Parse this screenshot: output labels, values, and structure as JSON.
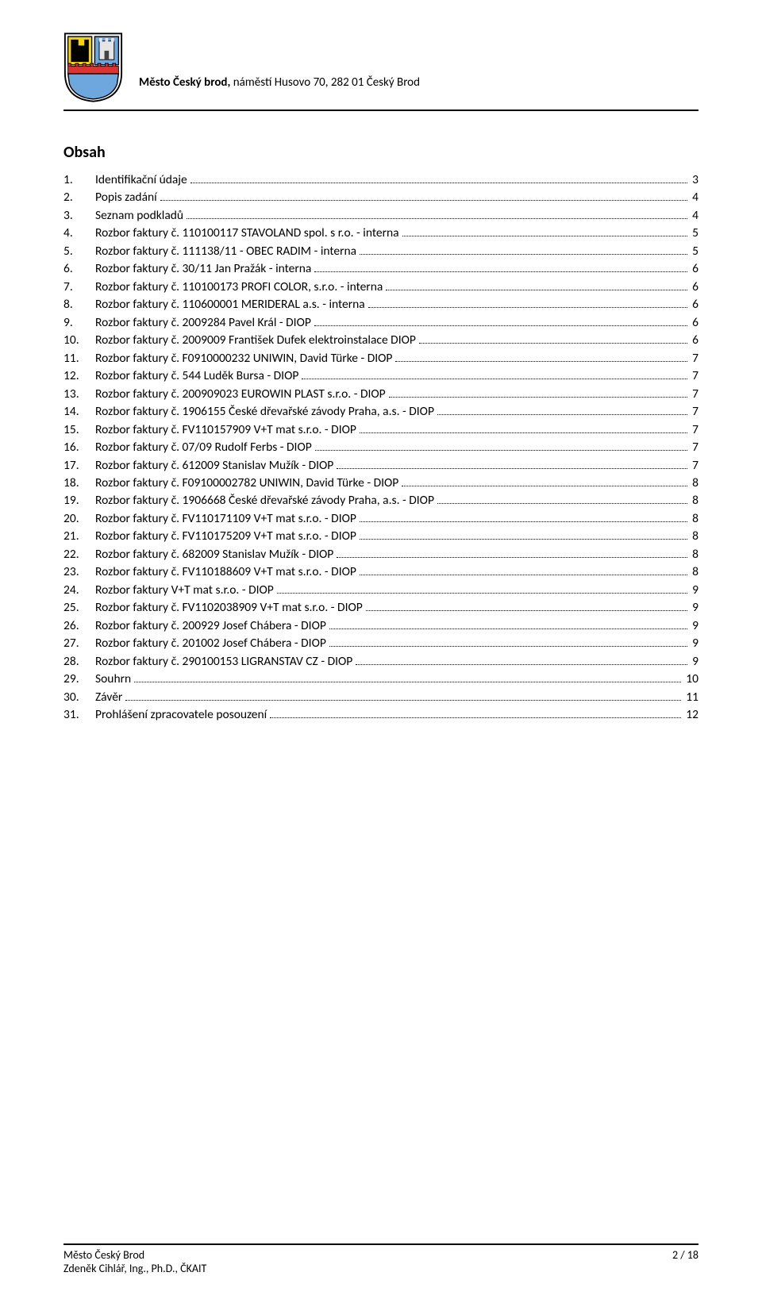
{
  "header": {
    "bold": "Město Český brod,",
    "rest": " náměstí Husovo 70, 282 01 Český Brod"
  },
  "title": "Obsah",
  "toc": [
    {
      "n": "1.",
      "label": "Identifikační údaje",
      "p": "3"
    },
    {
      "n": "2.",
      "label": "Popis zadání",
      "p": "4"
    },
    {
      "n": "3.",
      "label": "Seznam podkladů",
      "p": "4"
    },
    {
      "n": "4.",
      "label": "Rozbor faktury č. 110100117 STAVOLAND spol. s r.o. - interna",
      "p": "5"
    },
    {
      "n": "5.",
      "label": "Rozbor faktury č. 111138/11 -  OBEC RADIM - interna",
      "p": "5"
    },
    {
      "n": "6.",
      "label": "Rozbor faktury č. 30/11 Jan Pražák - interna",
      "p": "6"
    },
    {
      "n": "7.",
      "label": "Rozbor faktury č. 110100173 PROFI COLOR, s.r.o. - interna",
      "p": "6"
    },
    {
      "n": "8.",
      "label": "Rozbor faktury č. 110600001 MERIDERAL a.s. - interna",
      "p": "6"
    },
    {
      "n": "9.",
      "label": "Rozbor faktury č. 2009284 Pavel Král - DIOP",
      "p": "6"
    },
    {
      "n": "10.",
      "label": "Rozbor faktury č. 2009009 František Dufek elektroinstalace  DIOP",
      "p": "6"
    },
    {
      "n": "11.",
      "label": "Rozbor faktury č. F0910000232 UNIWIN, David Türke - DIOP",
      "p": "7"
    },
    {
      "n": "12.",
      "label": "Rozbor faktury č. 544 Luděk Bursa - DIOP",
      "p": "7"
    },
    {
      "n": "13.",
      "label": "Rozbor faktury č. 200909023 EUROWIN PLAST s.r.o. - DIOP",
      "p": "7"
    },
    {
      "n": "14.",
      "label": "Rozbor faktury č. 1906155 České dřevařské závody Praha, a.s. - DIOP",
      "p": "7"
    },
    {
      "n": "15.",
      "label": "Rozbor faktury č. FV110157909 V+T mat s.r.o. - DIOP",
      "p": "7"
    },
    {
      "n": "16.",
      "label": "Rozbor faktury č. 07/09 Rudolf Ferbs - DIOP",
      "p": "7"
    },
    {
      "n": "17.",
      "label": "Rozbor faktury č. 612009 Stanislav Mužík - DIOP",
      "p": "7"
    },
    {
      "n": "18.",
      "label": "Rozbor faktury č. F09100002782 UNIWIN, David Türke - DIOP",
      "p": "8"
    },
    {
      "n": "19.",
      "label": "Rozbor faktury č. 1906668 České dřevařské závody Praha, a.s. - DIOP",
      "p": "8"
    },
    {
      "n": "20.",
      "label": "Rozbor faktury č. FV110171109 V+T mat s.r.o. - DIOP",
      "p": "8"
    },
    {
      "n": "21.",
      "label": "Rozbor faktury č. FV110175209 V+T mat s.r.o. - DIOP",
      "p": "8"
    },
    {
      "n": "22.",
      "label": "Rozbor faktury č. 682009 Stanislav Mužík - DIOP",
      "p": "8"
    },
    {
      "n": "23.",
      "label": "Rozbor faktury č. FV110188609 V+T mat s.r.o. - DIOP",
      "p": "8"
    },
    {
      "n": "24.",
      "label": "Rozbor faktury V+T mat s.r.o. - DIOP",
      "p": "9"
    },
    {
      "n": "25.",
      "label": "Rozbor faktury č. FV1102038909 V+T mat s.r.o. - DIOP",
      "p": "9"
    },
    {
      "n": "26.",
      "label": "Rozbor faktury č. 200929 Josef Chábera - DIOP",
      "p": "9"
    },
    {
      "n": "27.",
      "label": "Rozbor faktury č. 201002 Josef Chábera - DIOP",
      "p": "9"
    },
    {
      "n": "28.",
      "label": "Rozbor faktury č. 290100153 LIGRANSTAV CZ - DIOP",
      "p": "9"
    },
    {
      "n": "29.",
      "label": "Souhrn",
      "p": "10"
    },
    {
      "n": "30.",
      "label": "Závěr",
      "p": "11"
    },
    {
      "n": "31.",
      "label": "Prohlášení zpracovatele posouzení",
      "p": "12"
    }
  ],
  "footer": {
    "left1": "Město Český Brod",
    "left2": "Zdeněk Cihlář, Ing., Ph.D., ČKAIT",
    "right": "2 / 18"
  }
}
